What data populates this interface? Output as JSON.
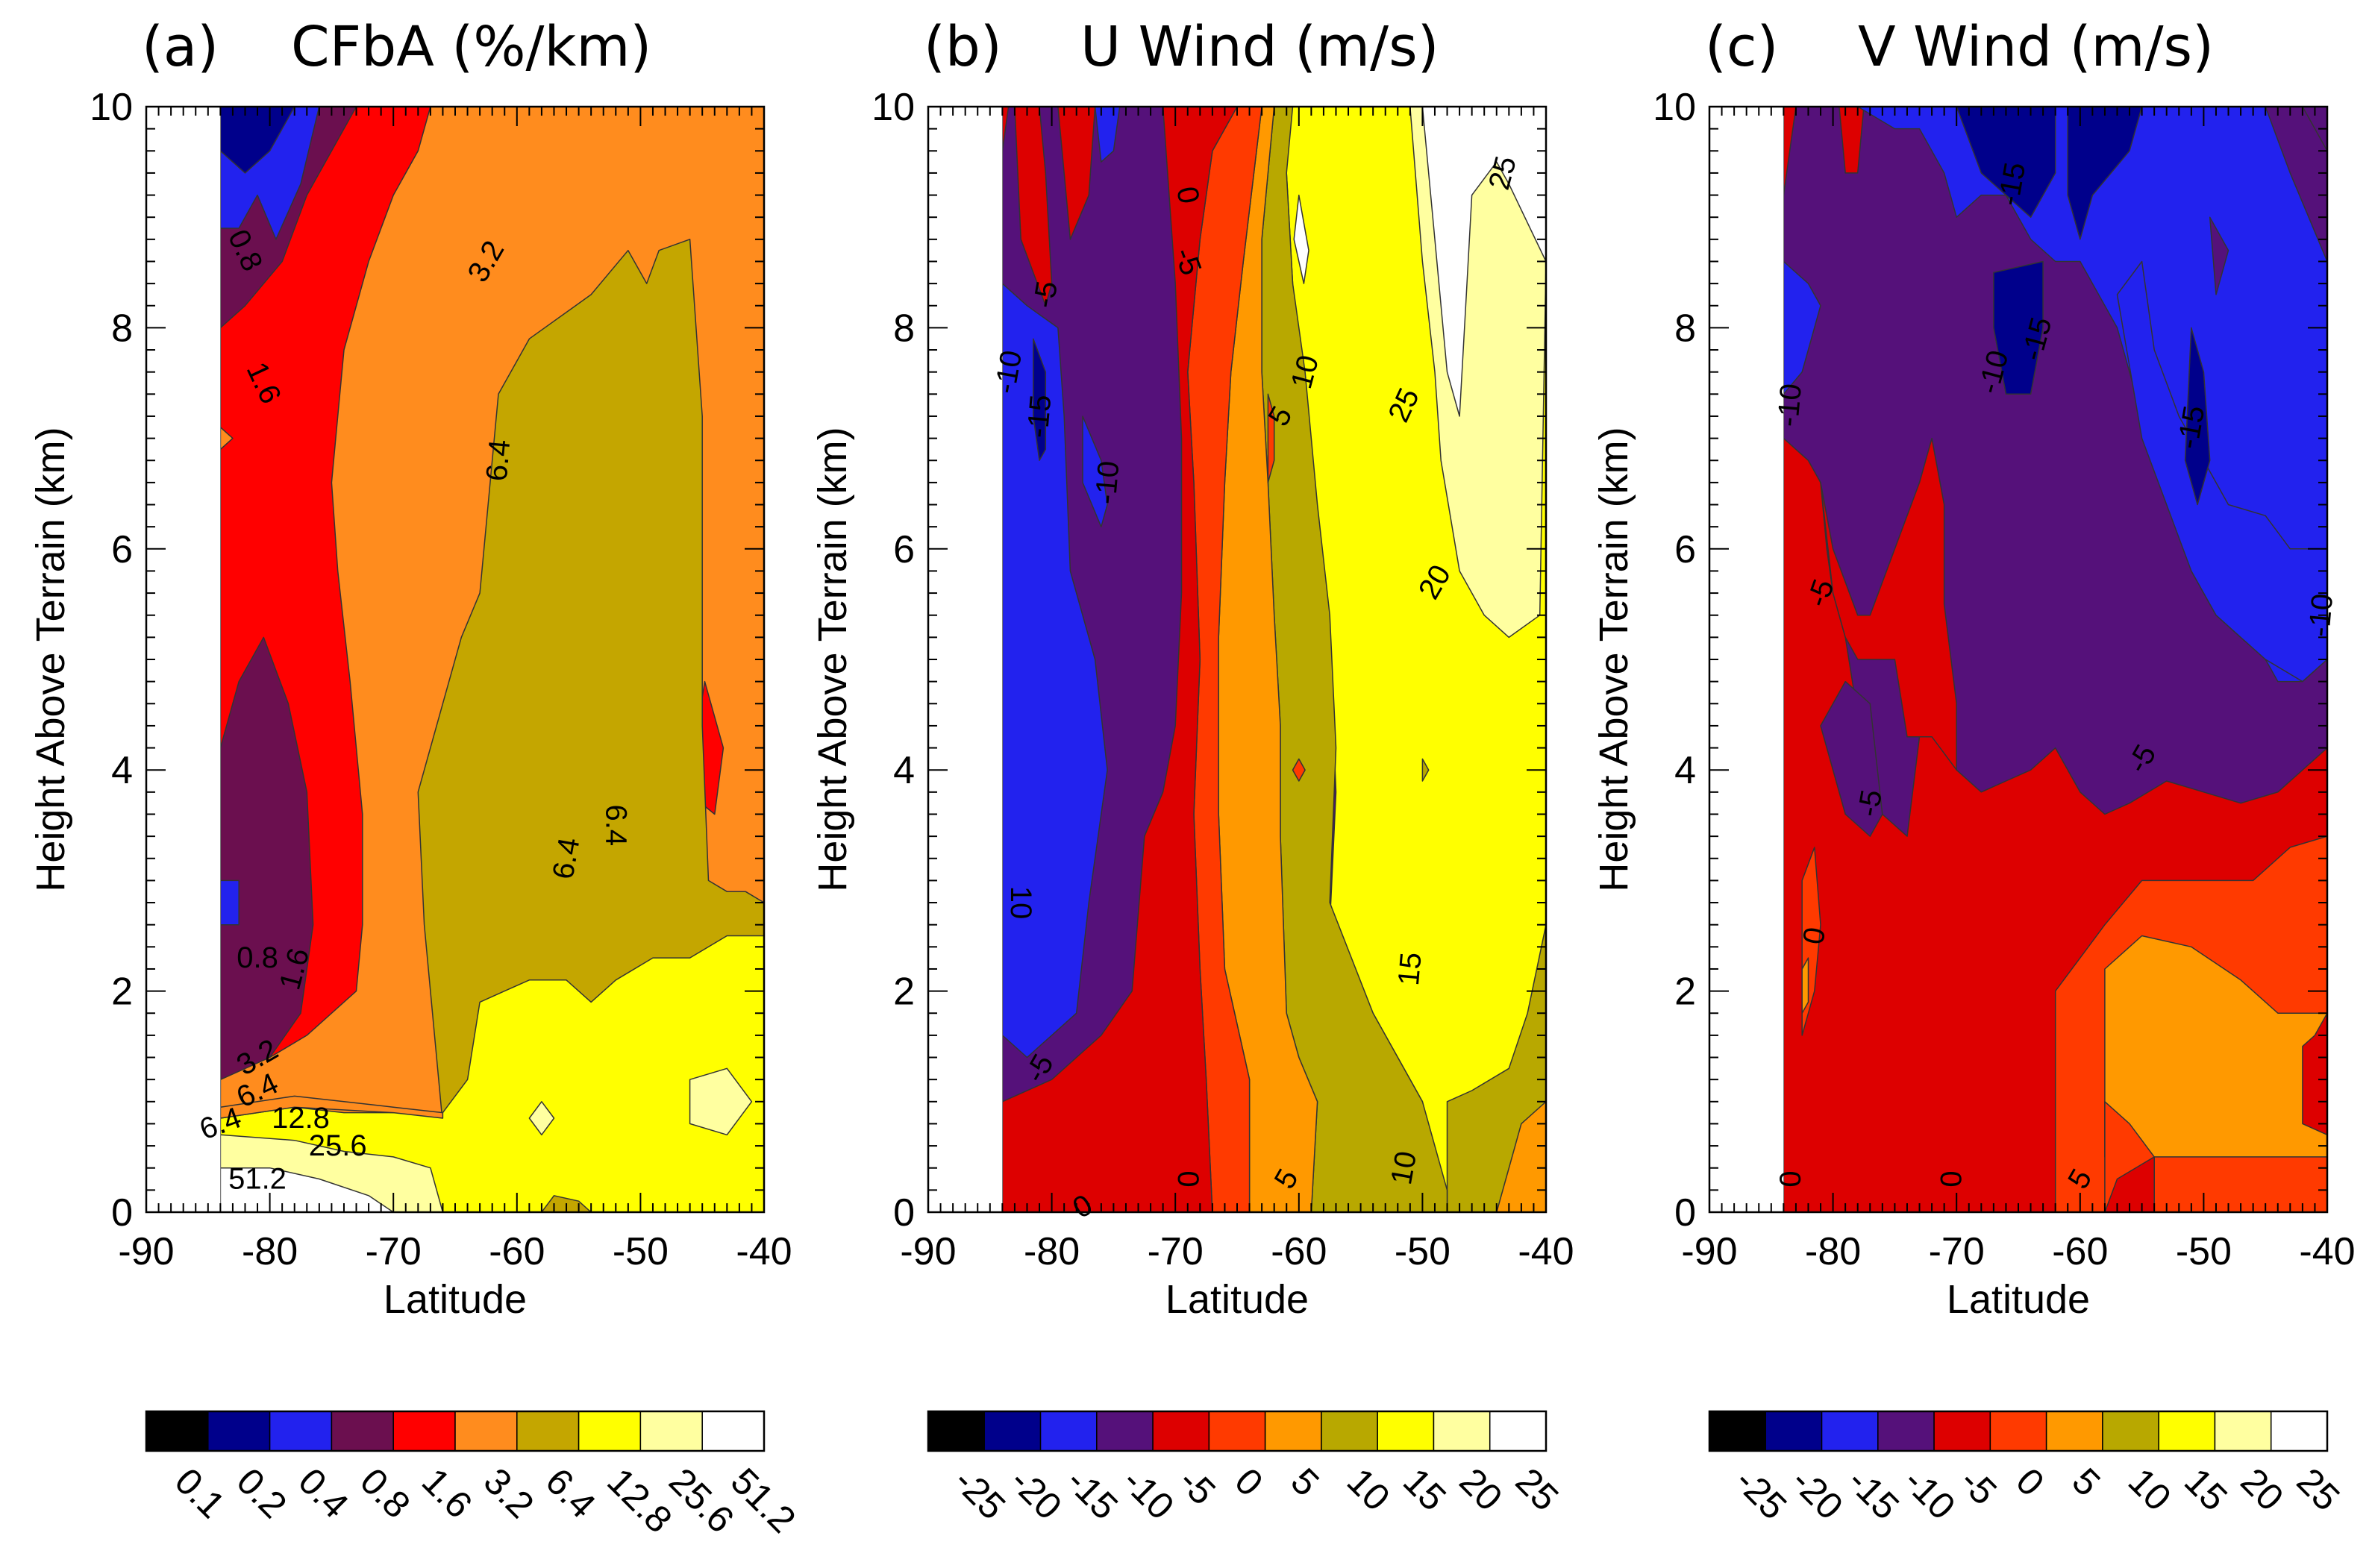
{
  "chart_data": [
    {
      "type": "contour",
      "id": "a",
      "title_tag": "(a)",
      "title": "CFbA (%/km)",
      "xlabel": "Latitude",
      "ylabel": "Height Above Terrain (km)",
      "xlim": [
        -90,
        -40
      ],
      "ylim": [
        0,
        10
      ],
      "xticks": [
        "-90",
        "-80",
        "-70",
        "-60",
        "-50",
        "-40"
      ],
      "yticks": [
        "0",
        "2",
        "4",
        "6",
        "8",
        "10"
      ],
      "data_lat_start": -84,
      "colorbar": {
        "labels": [
          "0.1",
          "0.2",
          "0.4",
          "0.8",
          "1.6",
          "3.2",
          "6.4",
          "12.8",
          "25.6",
          "51.2"
        ],
        "colors": [
          "#000000",
          "#00008b",
          "#2222ee",
          "#6b0f4f",
          "#ff0000",
          "#ff8c1e",
          "#c4a600",
          "#ffff00",
          "#ffffa0",
          "#ffffff"
        ]
      },
      "contour_labels": [
        {
          "text": "0.8",
          "lat": -82,
          "h": 8.7,
          "rot": 65
        },
        {
          "text": "3.2",
          "lat": -62.5,
          "h": 8.6,
          "rot": -60
        },
        {
          "text": "1.6",
          "lat": -80.5,
          "h": 7.5,
          "rot": 65
        },
        {
          "text": "6.4",
          "lat": -61.5,
          "h": 6.8,
          "rot": -85
        },
        {
          "text": "6.4",
          "lat": -52,
          "h": 3.5,
          "rot": 90
        },
        {
          "text": "6.4",
          "lat": -56,
          "h": 3.2,
          "rot": -80
        },
        {
          "text": "0.8",
          "lat": -81,
          "h": 2.3,
          "rot": 0
        },
        {
          "text": "1.6",
          "lat": -78,
          "h": 2.2,
          "rot": -75
        },
        {
          "text": "3.2",
          "lat": -81,
          "h": 1.4,
          "rot": -30
        },
        {
          "text": "6.4",
          "lat": -81,
          "h": 1.1,
          "rot": -25
        },
        {
          "text": "6.4",
          "lat": -84,
          "h": 0.8,
          "rot": -20
        },
        {
          "text": "12.8",
          "lat": -77.5,
          "h": 0.85,
          "rot": 0
        },
        {
          "text": "25.6",
          "lat": -74.5,
          "h": 0.6,
          "rot": 0
        },
        {
          "text": "51.2",
          "lat": -81,
          "h": 0.3,
          "rot": 0
        }
      ]
    },
    {
      "type": "contour",
      "id": "b",
      "title_tag": "(b)",
      "title": "U Wind (m/s)",
      "xlabel": "Latitude",
      "ylabel": "Height Above Terrain (km)",
      "xlim": [
        -90,
        -40
      ],
      "ylim": [
        0,
        10
      ],
      "xticks": [
        "-90",
        "-80",
        "-70",
        "-60",
        "-50",
        "-40"
      ],
      "yticks": [
        "0",
        "2",
        "4",
        "6",
        "8",
        "10"
      ],
      "data_lat_start": -84,
      "colorbar": {
        "labels": [
          "-25",
          "-20",
          "-15",
          "-10",
          "-5",
          "0",
          "5",
          "10",
          "15",
          "20",
          "25"
        ],
        "colors": [
          "#000000",
          "#00008b",
          "#2222ee",
          "#55117a",
          "#dd0000",
          "#ff3a00",
          "#ff9900",
          "#b8a800",
          "#ffff00",
          "#ffffa0",
          "#ffffff"
        ]
      },
      "contour_labels": [
        {
          "text": "25",
          "lat": -43.5,
          "h": 9.4,
          "rot": -75
        },
        {
          "text": "0",
          "lat": -69,
          "h": 9.2,
          "rot": 80
        },
        {
          "text": "-5",
          "lat": -69,
          "h": 8.6,
          "rot": 70
        },
        {
          "text": "-5",
          "lat": -80.5,
          "h": 8.3,
          "rot": -80
        },
        {
          "text": "-10",
          "lat": -83.5,
          "h": 7.6,
          "rot": -80
        },
        {
          "text": "-15",
          "lat": -81,
          "h": 7.2,
          "rot": -85
        },
        {
          "text": "10",
          "lat": -59.5,
          "h": 7.6,
          "rot": -75
        },
        {
          "text": "25",
          "lat": -51.5,
          "h": 7.3,
          "rot": -65
        },
        {
          "text": "5",
          "lat": -61.5,
          "h": 7.2,
          "rot": -60
        },
        {
          "text": "-10",
          "lat": -75.5,
          "h": 6.6,
          "rot": -85
        },
        {
          "text": "20",
          "lat": -49,
          "h": 5.7,
          "rot": -60
        },
        {
          "text": "10",
          "lat": -82.5,
          "h": 2.8,
          "rot": 90
        },
        {
          "text": "15",
          "lat": -51,
          "h": 2.2,
          "rot": -85
        },
        {
          "text": "-5",
          "lat": -81,
          "h": 1.3,
          "rot": -60
        },
        {
          "text": "0",
          "lat": -69,
          "h": 0.3,
          "rot": 90
        },
        {
          "text": "5",
          "lat": -61,
          "h": 0.3,
          "rot": -60
        },
        {
          "text": "10",
          "lat": -51.5,
          "h": 0.4,
          "rot": -80
        },
        {
          "text": "0",
          "lat": -77.5,
          "h": 0.05,
          "rot": -30
        }
      ]
    },
    {
      "type": "contour",
      "id": "c",
      "title_tag": "(c)",
      "title": "V Wind (m/s)",
      "xlabel": "Latitude",
      "ylabel": "Height Above Terrain (km)",
      "xlim": [
        -90,
        -40
      ],
      "ylim": [
        0,
        10
      ],
      "xticks": [
        "-90",
        "-80",
        "-70",
        "-60",
        "-50",
        "-40"
      ],
      "yticks": [
        "0",
        "2",
        "4",
        "6",
        "8",
        "10"
      ],
      "data_lat_start": -84,
      "colorbar": {
        "labels": [
          "-25",
          "-20",
          "-15",
          "-10",
          "-5",
          "0",
          "5",
          "10",
          "15",
          "20",
          "25"
        ],
        "colors": [
          "#000000",
          "#00008b",
          "#2222ee",
          "#55117a",
          "#dd0000",
          "#ff3a00",
          "#ff9900",
          "#b8a800",
          "#ffff00",
          "#ffffa0",
          "#ffffff"
        ]
      },
      "contour_labels": [
        {
          "text": "-15",
          "lat": -65.5,
          "h": 9.3,
          "rot": -80
        },
        {
          "text": "-15",
          "lat": -63.5,
          "h": 7.9,
          "rot": -75
        },
        {
          "text": "-10",
          "lat": -83.5,
          "h": 7.3,
          "rot": -85
        },
        {
          "text": "-10",
          "lat": -67,
          "h": 7.6,
          "rot": -75
        },
        {
          "text": "-15",
          "lat": -51,
          "h": 7.1,
          "rot": -80
        },
        {
          "text": "-5",
          "lat": -81,
          "h": 5.6,
          "rot": -70
        },
        {
          "text": "-10",
          "lat": -40.5,
          "h": 5.4,
          "rot": -85
        },
        {
          "text": "-5",
          "lat": -55,
          "h": 4.1,
          "rot": -60
        },
        {
          "text": "-5",
          "lat": -77,
          "h": 3.7,
          "rot": -80
        },
        {
          "text": "0",
          "lat": -81.5,
          "h": 2.5,
          "rot": -80
        },
        {
          "text": "0",
          "lat": -83.5,
          "h": 0.3,
          "rot": 90
        },
        {
          "text": "0",
          "lat": -70.5,
          "h": 0.3,
          "rot": 90
        },
        {
          "text": "5",
          "lat": -60,
          "h": 0.3,
          "rot": -60
        }
      ]
    }
  ]
}
